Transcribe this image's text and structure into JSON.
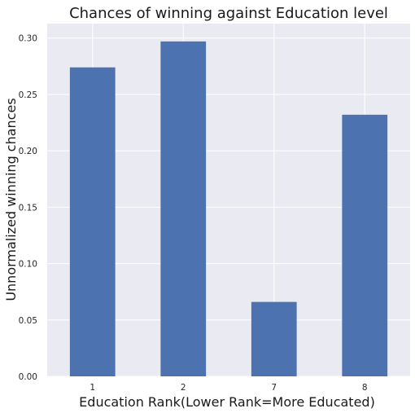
{
  "chart_data": {
    "type": "bar",
    "title": "Chances of winning against Education level",
    "xlabel": "Education Rank(Lower Rank=More Educated)",
    "ylabel": "Unnormalized winning chances",
    "categories": [
      "1",
      "2",
      "7",
      "8"
    ],
    "values": [
      0.274,
      0.297,
      0.066,
      0.232
    ],
    "ylim": [
      0,
      0.3128
    ],
    "yticks": [
      "0.00",
      "0.05",
      "0.10",
      "0.15",
      "0.20",
      "0.25",
      "0.30"
    ],
    "grid": true,
    "legend": "none"
  },
  "colors": {
    "bar": "#4c72b0",
    "plot_background": "#eaeaf2",
    "grid": "#ffffff"
  }
}
